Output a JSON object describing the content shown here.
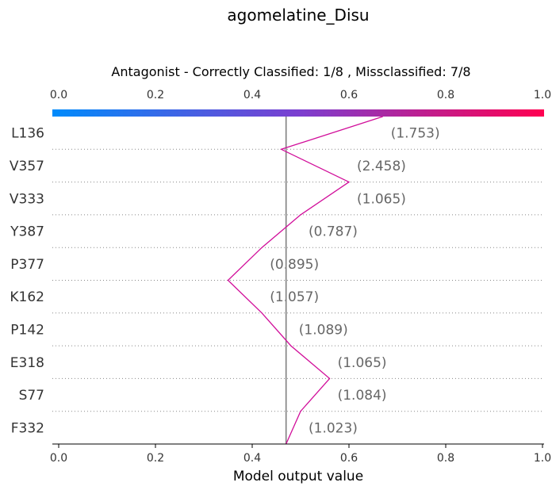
{
  "chart_data": {
    "type": "line",
    "title": "agomelatine_Disu",
    "subtitle": "Antagonist - Correctly Classified: 1/8 , Missclassified: 7/8",
    "xlabel": "Model output value",
    "ylabel": "",
    "xlim": [
      0.0,
      1.0
    ],
    "x_ticks": [
      "0.0",
      "0.2",
      "0.4",
      "0.6",
      "0.8",
      "1.0"
    ],
    "x_tick_values": [
      0.0,
      0.2,
      0.4,
      0.6,
      0.8,
      1.0
    ],
    "base_value": 0.47,
    "colorbar": {
      "from": "#008bfb",
      "mid": "#7b3fd0",
      "to": "#ff0051"
    },
    "line_color": "#d10e9a",
    "features": [
      {
        "label": "L136",
        "annotation": "(1.753)"
      },
      {
        "label": "V357",
        "annotation": "(2.458)"
      },
      {
        "label": "V333",
        "annotation": "(1.065)"
      },
      {
        "label": "Y387",
        "annotation": "(0.787)"
      },
      {
        "label": "P377",
        "annotation": "(0.895)"
      },
      {
        "label": "K162",
        "annotation": "(1.057)"
      },
      {
        "label": "P142",
        "annotation": "(1.089)"
      },
      {
        "label": "E318",
        "annotation": "(1.065)"
      },
      {
        "label": "S77",
        "annotation": "(1.084)"
      },
      {
        "label": "F332",
        "annotation": "(1.023)"
      }
    ],
    "path": [
      0.67,
      0.46,
      0.6,
      0.5,
      0.42,
      0.35,
      0.42,
      0.48,
      0.56,
      0.5,
      0.47
    ],
    "grid": "dotted row separators",
    "legend": "none"
  }
}
